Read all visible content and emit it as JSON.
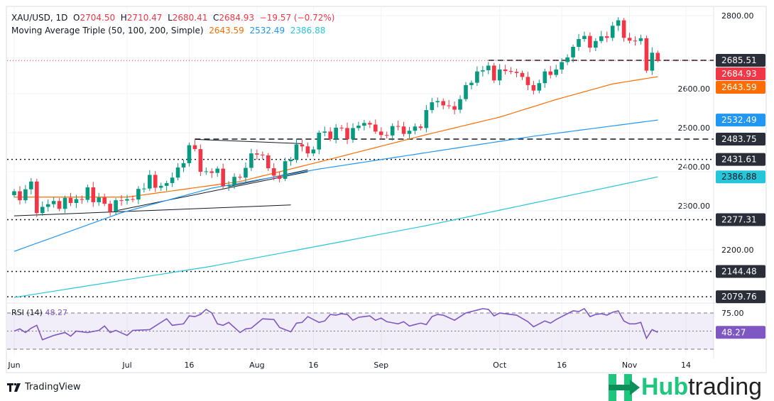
{
  "header": {
    "symbol": "XAU/USD, 1D",
    "o_label": "O",
    "o": "2704.50",
    "h_label": "H",
    "h": "2710.47",
    "l_label": "L",
    "l": "2680.41",
    "c_label": "C",
    "c": "2684.93",
    "change": "−19.57 (−0.72%)"
  },
  "indicator": {
    "name": "Moving Average Triple (50, 100, 200, Simple)",
    "v50": "2643.59",
    "v100": "2532.49",
    "v200": "2386.88"
  },
  "rsi": {
    "label": "RSI (14)",
    "value": "48.27",
    "axis_label": "75.00"
  },
  "footer": {
    "tradingview": "TradingView",
    "brand_a": "Hub",
    "brand_b": "trading"
  },
  "colors": {
    "up": "#089981",
    "down": "#f23645",
    "sma50": "#ff6d00",
    "sma100": "#2196f3",
    "sma200": "#26c6da",
    "rsi": "#7e57c2"
  },
  "chart_data": {
    "type": "candlestick",
    "ylim": [
      2060,
      2820
    ],
    "y_ticks": [
      "2800.00",
      "2600.00",
      "2500.00",
      "2400.00",
      "2300.00",
      "2200.00"
    ],
    "x_ticks": [
      {
        "label": "Jun",
        "i": 0
      },
      {
        "label": "Jul",
        "i": 20
      },
      {
        "label": "16",
        "i": 31
      },
      {
        "label": "Aug",
        "i": 43
      },
      {
        "label": "16",
        "i": 53
      },
      {
        "label": "Sep",
        "i": 65
      },
      {
        "label": "Oct",
        "i": 86
      },
      {
        "label": "16",
        "i": 97
      },
      {
        "label": "Nov",
        "i": 109
      },
      {
        "label": "14",
        "i": 119
      }
    ],
    "closes": [
      2350,
      2327,
      2355,
      2375,
      2294,
      2310,
      2317,
      2325,
      2305,
      2333,
      2320,
      2330,
      2328,
      2360,
      2322,
      2334,
      2318,
      2298,
      2327,
      2326,
      2330,
      2329,
      2356,
      2357,
      2392,
      2359,
      2364,
      2371,
      2385,
      2411,
      2422,
      2468,
      2458,
      2400,
      2401,
      2397,
      2408,
      2363,
      2365,
      2387,
      2385,
      2410,
      2447,
      2444,
      2442,
      2409,
      2390,
      2382,
      2427,
      2431,
      2470,
      2465,
      2447,
      2457,
      2500,
      2503,
      2484,
      2513,
      2512,
      2484,
      2512,
      2518,
      2525,
      2521,
      2503,
      2494,
      2493,
      2517,
      2516,
      2497,
      2505,
      2516,
      2512,
      2558,
      2578,
      2581,
      2570,
      2568,
      2559,
      2586,
      2622,
      2628,
      2657,
      2660,
      2672,
      2634,
      2662,
      2658,
      2656,
      2653,
      2643,
      2622,
      2608,
      2627,
      2657,
      2648,
      2662,
      2681,
      2693,
      2720,
      2740,
      2748,
      2718,
      2735,
      2747,
      2743,
      2774,
      2788,
      2743,
      2736,
      2735,
      2742,
      2659,
      2705,
      2684.93
    ],
    "last_ohlc": [
      2704.5,
      2710.47,
      2680.41,
      2684.93
    ],
    "sma50": [
      [
        0,
        2335
      ],
      [
        20,
        2335
      ],
      [
        40,
        2375
      ],
      [
        54,
        2425
      ],
      [
        73,
        2495
      ],
      [
        86,
        2540
      ],
      [
        96,
        2585
      ],
      [
        106,
        2625
      ],
      [
        114,
        2643.59
      ]
    ],
    "sma100": [
      [
        0,
        2196
      ],
      [
        19,
        2295
      ],
      [
        35,
        2358
      ],
      [
        54,
        2407
      ],
      [
        73,
        2449
      ],
      [
        92,
        2491
      ],
      [
        114,
        2532.49
      ]
    ],
    "sma200": [
      [
        0,
        2078
      ],
      [
        35,
        2158
      ],
      [
        73,
        2262
      ],
      [
        114,
        2386.88
      ]
    ],
    "levels": [
      {
        "value": "2685.51",
        "style": "dashed",
        "from": 84
      },
      {
        "value": "2483.75",
        "style": "dashed",
        "from": 32
      },
      {
        "value": "2431.61",
        "style": "dotted",
        "from": 0
      },
      {
        "value": "2277.31",
        "style": "dotted",
        "from": 0
      },
      {
        "value": "2144.48",
        "style": "dotted",
        "from": 0
      },
      {
        "value": "2079.76",
        "style": "dotted",
        "from": 0
      }
    ],
    "trendlines": [
      [
        [
          0,
          2287
        ],
        [
          49,
          2315
        ]
      ],
      [
        [
          18,
          2300
        ],
        [
          52,
          2400
        ]
      ],
      [
        [
          32,
          2483
        ],
        [
          51,
          2472
        ]
      ],
      [
        [
          38,
          2362
        ],
        [
          52,
          2405
        ]
      ]
    ],
    "rsi_levels": [
      75,
      50,
      25
    ],
    "rsi": [
      [
        0,
        50
      ],
      [
        1,
        53
      ],
      [
        2,
        48
      ],
      [
        3,
        54
      ],
      [
        4,
        58
      ],
      [
        5,
        38
      ],
      [
        7,
        44
      ],
      [
        9,
        48
      ],
      [
        10,
        43
      ],
      [
        11,
        50
      ],
      [
        13,
        48
      ],
      [
        15,
        51
      ],
      [
        16,
        57
      ],
      [
        17,
        48
      ],
      [
        18,
        51
      ],
      [
        20,
        44
      ],
      [
        21,
        51
      ],
      [
        24,
        52
      ],
      [
        26,
        62
      ],
      [
        27,
        67
      ],
      [
        28,
        58
      ],
      [
        30,
        60
      ],
      [
        31,
        71
      ],
      [
        32,
        70
      ],
      [
        33,
        73
      ],
      [
        34,
        80
      ],
      [
        35,
        75
      ],
      [
        36,
        60
      ],
      [
        37,
        58
      ],
      [
        38,
        62
      ],
      [
        40,
        48
      ],
      [
        41,
        53
      ],
      [
        42,
        54
      ],
      [
        44,
        67
      ],
      [
        46,
        66
      ],
      [
        47,
        55
      ],
      [
        49,
        49
      ],
      [
        50,
        61
      ],
      [
        51,
        62
      ],
      [
        52,
        70
      ],
      [
        53,
        66
      ],
      [
        54,
        62
      ],
      [
        55,
        64
      ],
      [
        56,
        73
      ],
      [
        57,
        72
      ],
      [
        58,
        74
      ],
      [
        59,
        73
      ],
      [
        60,
        65
      ],
      [
        61,
        69
      ],
      [
        63,
        71
      ],
      [
        64,
        65
      ],
      [
        65,
        68
      ],
      [
        66,
        63
      ],
      [
        68,
        60
      ],
      [
        69,
        63
      ],
      [
        70,
        57
      ],
      [
        72,
        61
      ],
      [
        73,
        59
      ],
      [
        74,
        70
      ],
      [
        75,
        73
      ],
      [
        76,
        72
      ],
      [
        78,
        65
      ],
      [
        80,
        75
      ],
      [
        81,
        77
      ],
      [
        83,
        81
      ],
      [
        84,
        80
      ],
      [
        85,
        71
      ],
      [
        86,
        75
      ],
      [
        88,
        73
      ],
      [
        89,
        72
      ],
      [
        91,
        63
      ],
      [
        92,
        56
      ],
      [
        94,
        64
      ],
      [
        95,
        61
      ],
      [
        96,
        66
      ],
      [
        97,
        70
      ],
      [
        98,
        74
      ],
      [
        99,
        78
      ],
      [
        100,
        77
      ],
      [
        101,
        81
      ],
      [
        102,
        70
      ],
      [
        103,
        73
      ],
      [
        104,
        74
      ],
      [
        105,
        72
      ],
      [
        106,
        76
      ],
      [
        107,
        78
      ],
      [
        108,
        64
      ],
      [
        109,
        60
      ],
      [
        110,
        60
      ],
      [
        111,
        62
      ],
      [
        112,
        40
      ],
      [
        113,
        52
      ],
      [
        114,
        48.27
      ]
    ]
  }
}
